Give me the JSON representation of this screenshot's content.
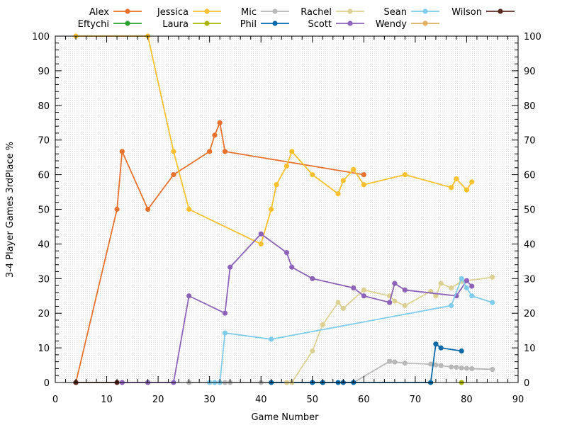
{
  "chart_data": {
    "type": "line",
    "xlabel": "Game Number",
    "ylabel": "3-4 Player Games 3rdPlace %",
    "xlim": [
      0,
      90
    ],
    "ylim": [
      0,
      100
    ],
    "x_ticks": [
      0,
      10,
      20,
      30,
      40,
      50,
      60,
      70,
      80,
      90
    ],
    "y_ticks": [
      0,
      10,
      20,
      30,
      40,
      50,
      60,
      70,
      80,
      90,
      100
    ],
    "y_ticks_right": true,
    "grid": "dotted",
    "legend_position": "top",
    "series": [
      {
        "name": "Alex",
        "color": "#e8712d",
        "points": [
          [
            4,
            0
          ],
          [
            12,
            50
          ],
          [
            13,
            66.7
          ],
          [
            18,
            50
          ],
          [
            23,
            60
          ],
          [
            30,
            66.7
          ],
          [
            31,
            71.4
          ],
          [
            32,
            75
          ],
          [
            33,
            66.7
          ],
          [
            60,
            60
          ]
        ]
      },
      {
        "name": "Eftychi",
        "color": "#2ca02c",
        "points": []
      },
      {
        "name": "Jessica",
        "color": "#fbc02d",
        "points": [
          [
            4,
            100
          ],
          [
            18,
            100
          ],
          [
            23,
            66.7
          ],
          [
            26,
            50
          ],
          [
            40,
            40
          ],
          [
            42,
            50
          ],
          [
            43,
            57.1
          ],
          [
            45,
            62.5
          ],
          [
            46,
            66.7
          ],
          [
            50,
            60
          ],
          [
            55,
            54.5
          ],
          [
            56,
            58.3
          ],
          [
            58,
            61.5
          ],
          [
            60,
            57.1
          ],
          [
            68,
            60
          ],
          [
            77,
            56.3
          ],
          [
            78,
            58.8
          ],
          [
            80,
            55.6
          ],
          [
            81,
            57.9
          ]
        ]
      },
      {
        "name": "Laura",
        "color": "#aab400",
        "points": [
          [
            79,
            0
          ]
        ]
      },
      {
        "name": "Mic",
        "color": "#b8b8b8",
        "points": [
          [
            26,
            0
          ],
          [
            30,
            0
          ],
          [
            31,
            0
          ],
          [
            32,
            0
          ],
          [
            33,
            0
          ],
          [
            34,
            0
          ],
          [
            40,
            0
          ],
          [
            45,
            0
          ],
          [
            46,
            0
          ],
          [
            50,
            0
          ],
          [
            52,
            0
          ],
          [
            56,
            0
          ],
          [
            58,
            0
          ],
          [
            65,
            6.1
          ],
          [
            66,
            5.9
          ],
          [
            68,
            5.6
          ],
          [
            73,
            5.3
          ],
          [
            74,
            5.1
          ],
          [
            75,
            4.9
          ],
          [
            77,
            4.5
          ],
          [
            78,
            4.4
          ],
          [
            79,
            4.2
          ],
          [
            80,
            4.1
          ],
          [
            81,
            4
          ],
          [
            85,
            3.8
          ]
        ]
      },
      {
        "name": "Phil",
        "color": "#0a6aa8",
        "points": [
          [
            42,
            0
          ],
          [
            50,
            0
          ],
          [
            52,
            0
          ],
          [
            55,
            0
          ],
          [
            56,
            0
          ],
          [
            58,
            0
          ],
          [
            73,
            0
          ],
          [
            74,
            11.1
          ],
          [
            75,
            10
          ],
          [
            79,
            9.1
          ]
        ]
      },
      {
        "name": "Rachel",
        "color": "#dcd192",
        "points": [
          [
            45,
            0
          ],
          [
            46,
            0
          ],
          [
            50,
            9.1
          ],
          [
            52,
            16.7
          ],
          [
            55,
            23.1
          ],
          [
            56,
            21.4
          ],
          [
            60,
            26.7
          ],
          [
            65,
            25
          ],
          [
            66,
            23.5
          ],
          [
            68,
            22.2
          ],
          [
            73,
            26.3
          ],
          [
            74,
            25
          ],
          [
            75,
            28.6
          ],
          [
            77,
            27.3
          ],
          [
            79,
            29.2
          ],
          [
            85,
            30.4
          ]
        ]
      },
      {
        "name": "Scott",
        "color": "#8c63b8",
        "points": [
          [
            13,
            0
          ],
          [
            18,
            0
          ],
          [
            23,
            0
          ],
          [
            26,
            25
          ],
          [
            33,
            20
          ],
          [
            34,
            33.3
          ],
          [
            40,
            42.9
          ],
          [
            45,
            37.5
          ],
          [
            46,
            33.3
          ],
          [
            50,
            30
          ],
          [
            58,
            27.3
          ],
          [
            60,
            25
          ],
          [
            65,
            23.1
          ],
          [
            66,
            28.6
          ],
          [
            68,
            26.7
          ],
          [
            78,
            25
          ],
          [
            80,
            29.4
          ],
          [
            81,
            27.8
          ]
        ]
      },
      {
        "name": "Sean",
        "color": "#80ccec",
        "points": [
          [
            30,
            0
          ],
          [
            31,
            0
          ],
          [
            32,
            0
          ],
          [
            33,
            14.3
          ],
          [
            42,
            12.5
          ],
          [
            77,
            22.2
          ],
          [
            79,
            30
          ],
          [
            80,
            27.3
          ],
          [
            81,
            25
          ],
          [
            85,
            23.1
          ]
        ]
      },
      {
        "name": "Wendy",
        "color": "#e0b060",
        "points": []
      },
      {
        "name": "Wilson",
        "color": "#5a2a20",
        "points": [
          [
            4,
            0
          ],
          [
            12,
            0
          ]
        ]
      }
    ]
  }
}
